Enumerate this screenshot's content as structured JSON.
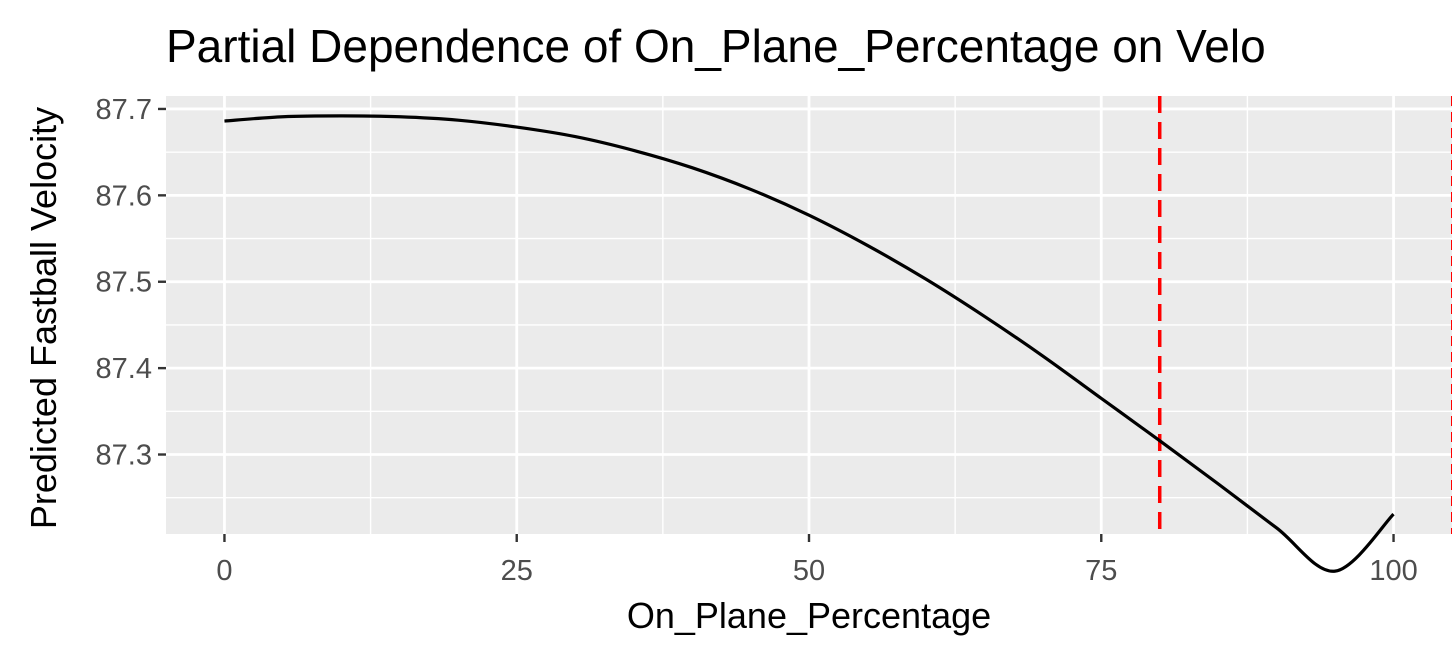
{
  "chart_data": {
    "type": "line",
    "title": "Partial Dependence of On_Plane_Percentage on Velo",
    "xlabel": "On_Plane_Percentage",
    "ylabel": "Predicted Fastball Velocity",
    "xlim": [
      -5,
      105
    ],
    "ylim": [
      87.208,
      87.715
    ],
    "x_ticks": [
      0,
      25,
      50,
      75,
      100
    ],
    "x_tick_labels": [
      "0",
      "25",
      "50",
      "75",
      "100"
    ],
    "y_ticks": [
      87.3,
      87.4,
      87.5,
      87.6,
      87.7
    ],
    "y_tick_labels": [
      "87.3",
      "87.4",
      "87.5",
      "87.6",
      "87.7"
    ],
    "grid": true,
    "background_color": "#ebebeb",
    "grid_color": "#ffffff",
    "series": [
      {
        "color": "#000000",
        "x": [
          0,
          5,
          10,
          15,
          20,
          25,
          30,
          35,
          40,
          45,
          50,
          55,
          60,
          65,
          70,
          75,
          80,
          85,
          90,
          95,
          100
        ],
        "y": [
          87.686,
          87.691,
          87.692,
          87.691,
          87.687,
          87.679,
          87.668,
          87.652,
          87.632,
          87.607,
          87.577,
          87.542,
          87.503,
          87.46,
          87.414,
          87.365,
          87.316,
          87.266,
          87.215,
          87.165,
          87.231
        ]
      }
    ],
    "reference_lines": [
      {
        "axis": "x",
        "value": 80,
        "color": "#ff0000",
        "style": "dashed"
      },
      {
        "axis": "x",
        "value": 105,
        "color": "#ff0000",
        "style": "dashed"
      }
    ]
  }
}
